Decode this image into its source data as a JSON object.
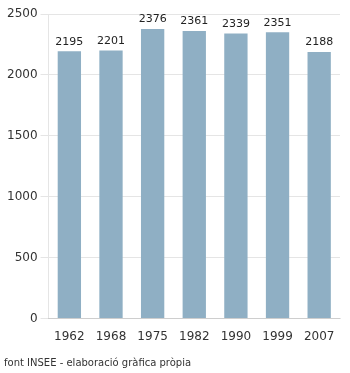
{
  "chart_data": {
    "type": "bar",
    "categories": [
      "1962",
      "1968",
      "1975",
      "1982",
      "1990",
      "1999",
      "2007"
    ],
    "values": [
      2195,
      2201,
      2376,
      2361,
      2339,
      2351,
      2188
    ],
    "color": "#8fafc4",
    "ylim": [
      0,
      2500
    ],
    "yticks": [
      0,
      500,
      1000,
      1500,
      2000,
      2500
    ],
    "grid": true,
    "data_labels": true,
    "footnote": "font INSEE - elaboració gràfica pròpia"
  }
}
